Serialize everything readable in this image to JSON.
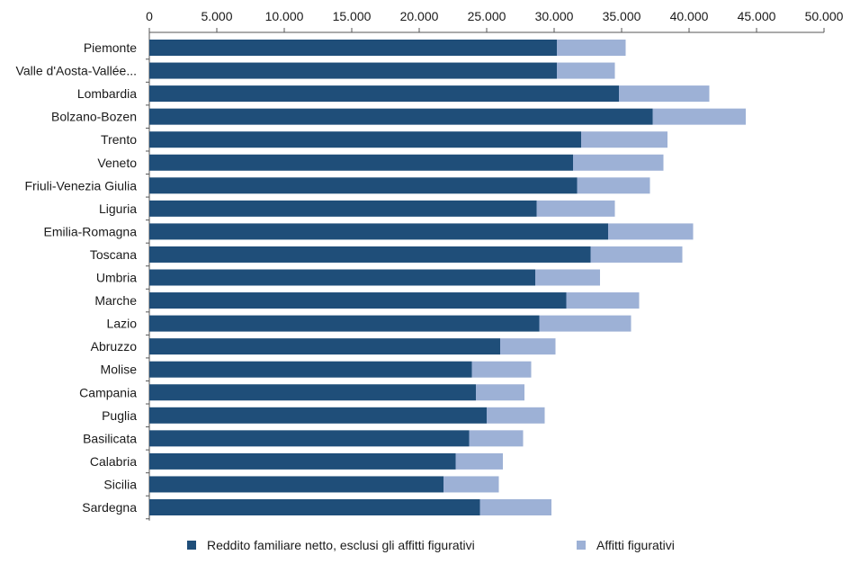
{
  "chart_data": {
    "type": "bar",
    "orientation": "horizontal",
    "stacked": true,
    "xlim": [
      0,
      50000
    ],
    "x_ticks": [
      "0",
      "5.000",
      "10.000",
      "15.000",
      "20.000",
      "25.000",
      "30.000",
      "35.000",
      "40.000",
      "45.000",
      "50.000"
    ],
    "x_axis_position": "top",
    "grid": false,
    "legend_position": "bottom",
    "categories": [
      "Piemonte",
      "Valle d'Aosta-Vallée...",
      "Lombardia",
      "Bolzano-Bozen",
      "Trento",
      "Veneto",
      "Friuli-Venezia Giulia",
      "Liguria",
      "Emilia-Romagna",
      "Toscana",
      "Umbria",
      "Marche",
      "Lazio",
      "Abruzzo",
      "Molise",
      "Campania",
      "Puglia",
      "Basilicata",
      "Calabria",
      "Sicilia",
      "Sardegna"
    ],
    "series": [
      {
        "name": "Reddito familiare netto, esclusi gli affitti figurativi",
        "color": "#1f4e79",
        "values": [
          30200,
          30200,
          34800,
          37300,
          32000,
          31400,
          31700,
          28700,
          34000,
          32700,
          28600,
          30900,
          28900,
          26000,
          23900,
          24200,
          25000,
          23700,
          22700,
          21800,
          24500
        ]
      },
      {
        "name": "Affitti figurativi",
        "color": "#9db1d6",
        "values": [
          5100,
          4300,
          6700,
          6900,
          6400,
          6700,
          5400,
          5800,
          6300,
          6800,
          4800,
          5400,
          6800,
          4100,
          4400,
          3600,
          4300,
          4000,
          3500,
          4100,
          5300
        ]
      }
    ]
  }
}
